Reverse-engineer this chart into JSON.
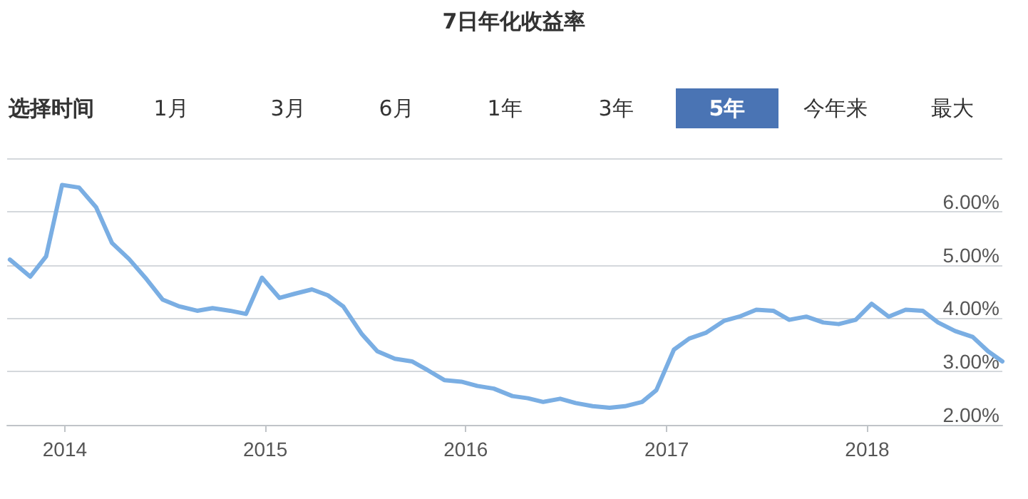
{
  "chart_data": {
    "type": "line",
    "title": "7日年化收益率",
    "annotations": [
      "选择时间",
      "1月",
      "3月",
      "6月",
      "1年",
      "3年",
      "5年",
      "今年来",
      "最大"
    ],
    "x": [
      "2013-09-23",
      "2013-10-30",
      "2013-11-28",
      "2013-12-27",
      "2014-01-27",
      "2014-02-27",
      "2014-03-28",
      "2014-04-28",
      "2014-05-30",
      "2014-06-28",
      "2014-07-29",
      "2014-08-30",
      "2014-09-27",
      "2014-10-29",
      "2014-11-27",
      "2014-12-26",
      "2015-01-27",
      "2015-02-24",
      "2015-03-27",
      "2015-04-25",
      "2015-05-23",
      "2015-06-26",
      "2015-07-24",
      "2015-08-25",
      "2015-09-25",
      "2015-10-23",
      "2015-11-23",
      "2015-12-24",
      "2016-01-22",
      "2016-02-21",
      "2016-03-26",
      "2016-04-23",
      "2016-05-21",
      "2016-06-21",
      "2016-07-19",
      "2016-08-19",
      "2016-09-19",
      "2016-10-17",
      "2016-11-17",
      "2016-12-13",
      "2017-01-14",
      "2017-02-11",
      "2017-03-14",
      "2017-04-15",
      "2017-05-13",
      "2017-06-13",
      "2017-07-14",
      "2017-08-12",
      "2017-09-12",
      "2017-10-13",
      "2017-11-10",
      "2017-12-11",
      "2018-01-09",
      "2018-02-09",
      "2018-03-12",
      "2018-04-12",
      "2018-05-10",
      "2018-06-10",
      "2018-07-12",
      "2018-08-09",
      "2018-09-04"
    ],
    "series": [
      {
        "color": "#7aaee3",
        "values": [
          5.1,
          4.78,
          5.16,
          6.5,
          6.45,
          6.08,
          5.41,
          5.11,
          4.73,
          4.35,
          4.22,
          4.14,
          4.19,
          4.14,
          4.08,
          4.76,
          4.38,
          4.46,
          4.54,
          4.43,
          4.22,
          3.7,
          3.38,
          3.24,
          3.19,
          3.03,
          2.84,
          2.81,
          2.73,
          2.68,
          2.54,
          2.5,
          2.43,
          2.49,
          2.41,
          2.35,
          2.32,
          2.35,
          2.43,
          2.65,
          3.41,
          3.62,
          3.73,
          3.95,
          4.03,
          4.16,
          4.14,
          3.97,
          4.03,
          3.92,
          3.89,
          3.97,
          4.27,
          4.03,
          4.16,
          4.14,
          3.92,
          3.76,
          3.65,
          3.38,
          3.19
        ]
      }
    ],
    "xlim": [
      "2013-09-18",
      "2018-09-04"
    ],
    "xticks": [
      {
        "value": "2014-01-01",
        "label": "2014"
      },
      {
        "value": "2015-01-01",
        "label": "2015"
      },
      {
        "value": "2016-01-01",
        "label": "2016"
      },
      {
        "value": "2017-01-01",
        "label": "2017"
      },
      {
        "value": "2018-01-01",
        "label": "2018"
      }
    ],
    "ylim": [
      2,
      7
    ],
    "yticks": [
      {
        "value": 2,
        "label": "2.00%"
      },
      {
        "value": 3,
        "label": "3.00%"
      },
      {
        "value": 4,
        "label": "4.00%"
      },
      {
        "value": 5,
        "label": "5.00%"
      },
      {
        "value": 6,
        "label": "6.00%"
      },
      {
        "value": 7,
        "label": null
      }
    ],
    "grid": "y",
    "marker": "none",
    "line_style": "solid"
  }
}
